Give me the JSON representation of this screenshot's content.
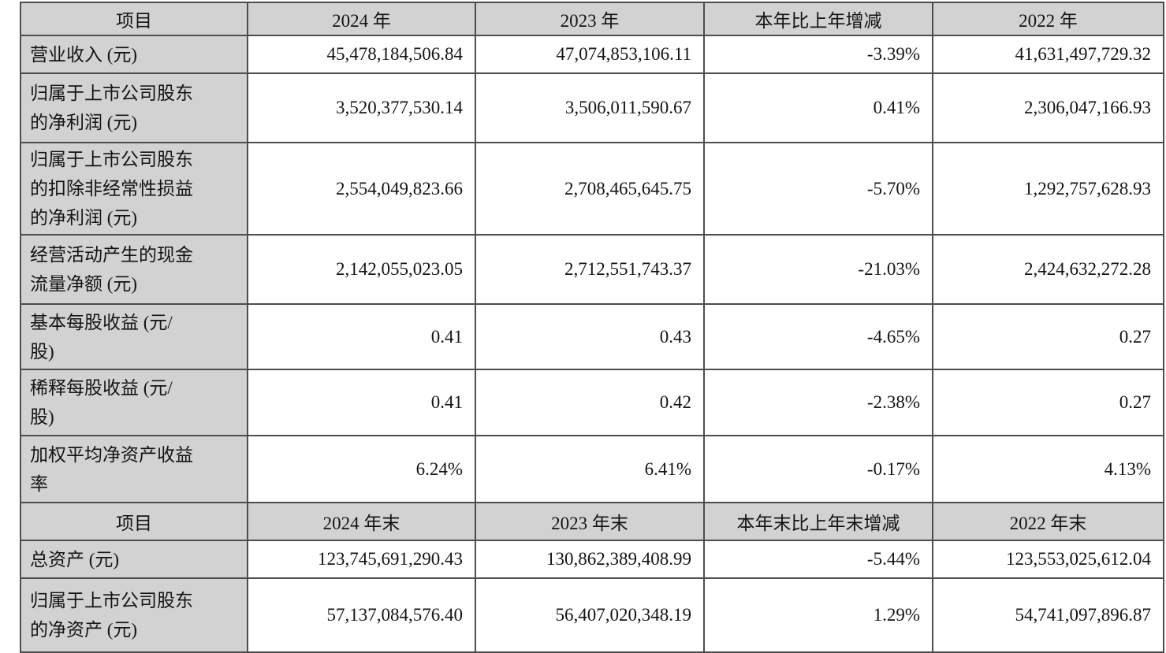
{
  "colors": {
    "header_background": "#d2d2d2",
    "label_column_background": "#d2d2d2",
    "cell_background": "#ffffff",
    "border": "#4d4d4d",
    "text": "#141414"
  },
  "table": {
    "sections": [
      {
        "header": {
          "item": "项目",
          "c1": "2024 年",
          "c2": "2023 年",
          "c3": "本年比上年增减",
          "c4": "2022 年"
        },
        "rows": [
          {
            "label": "营业收入 (元)",
            "v1": "45,478,184,506.84",
            "v2": "47,074,853,106.11",
            "v3": "-3.39%",
            "v4": "41,631,497,729.32"
          },
          {
            "label": "归属于上市公司股东\n的净利润 (元)",
            "v1": "3,520,377,530.14",
            "v2": "3,506,011,590.67",
            "v3": "0.41%",
            "v4": "2,306,047,166.93"
          },
          {
            "label": "归属于上市公司股东\n的扣除非经常性损益\n的净利润 (元)",
            "v1": "2,554,049,823.66",
            "v2": "2,708,465,645.75",
            "v3": "-5.70%",
            "v4": "1,292,757,628.93"
          },
          {
            "label": "经营活动产生的现金\n流量净额 (元)",
            "v1": "2,142,055,023.05",
            "v2": "2,712,551,743.37",
            "v3": "-21.03%",
            "v4": "2,424,632,272.28"
          },
          {
            "label": "基本每股收益 (元/\n股)",
            "v1": "0.41",
            "v2": "0.43",
            "v3": "-4.65%",
            "v4": "0.27"
          },
          {
            "label": "稀释每股收益 (元/\n股)",
            "v1": "0.41",
            "v2": "0.42",
            "v3": "-2.38%",
            "v4": "0.27"
          },
          {
            "label": "加权平均净资产收益\n率",
            "v1": "6.24%",
            "v2": "6.41%",
            "v3": "-0.17%",
            "v4": "4.13%"
          }
        ]
      },
      {
        "header": {
          "item": "项目",
          "c1": "2024 年末",
          "c2": "2023 年末",
          "c3": "本年末比上年末增减",
          "c4": "2022 年末"
        },
        "rows": [
          {
            "label": "总资产 (元)",
            "v1": "123,745,691,290.43",
            "v2": "130,862,389,408.99",
            "v3": "-5.44%",
            "v4": "123,553,025,612.04"
          },
          {
            "label": "归属于上市公司股东\n的净资产 (元)",
            "v1": "57,137,084,576.40",
            "v2": "56,407,020,348.19",
            "v3": "1.29%",
            "v4": "54,741,097,896.87"
          }
        ]
      }
    ]
  }
}
